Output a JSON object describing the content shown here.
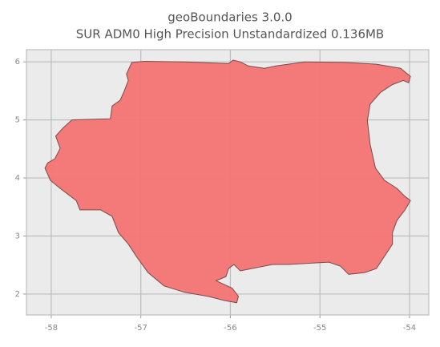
{
  "chart_data": {
    "type": "map",
    "title": "geoBoundaries 3.0.0",
    "subtitle": "SUR ADM0 High Precision Unstandardized 0.136MB",
    "color": "#f47474",
    "edge_color": "#7a4a4a",
    "background": "#ebebeb",
    "grid": true,
    "xlim": [
      -58.277,
      -53.785
    ],
    "ylim": [
      1.64,
      6.21
    ],
    "xticks": [
      -58,
      -57,
      -56,
      -55,
      -54
    ],
    "yticks": [
      2,
      3,
      4,
      5,
      6
    ],
    "x": [
      -57.1,
      -56.96,
      -56.51,
      -56.02,
      -55.97,
      -55.89,
      -55.8,
      -55.62,
      -55.49,
      -55.17,
      -54.72,
      -54.37,
      -54.1,
      -53.99,
      -54.01,
      -54.07,
      -54.19,
      -54.32,
      -54.44,
      -54.47,
      -54.44,
      -54.38,
      -54.28,
      -54.14,
      -54.05,
      -53.99,
      -54.05,
      -54.14,
      -54.19,
      -54.19,
      -54.28,
      -54.37,
      -54.5,
      -54.68,
      -54.77,
      -54.9,
      -55.35,
      -55.53,
      -55.89,
      -55.96,
      -56.02,
      -56.05,
      -56.16,
      -55.98,
      -55.91,
      -55.93,
      -56.07,
      -56.25,
      -56.51,
      -56.74,
      -56.92,
      -57.05,
      -57.14,
      -57.25,
      -57.32,
      -57.45,
      -57.68,
      -57.72,
      -57.9,
      -58.01,
      -58.07,
      -58.04,
      -57.96,
      -57.9,
      -57.95,
      -57.87,
      -57.77,
      -57.34,
      -57.32,
      -57.23,
      -57.19,
      -57.14,
      -57.16
    ],
    "values": [
      5.99,
      6.01,
      6.0,
      5.97,
      6.03,
      6.0,
      5.93,
      5.89,
      5.93,
      6.0,
      5.99,
      5.96,
      5.89,
      5.75,
      5.64,
      5.68,
      5.61,
      5.48,
      5.27,
      4.99,
      4.58,
      4.17,
      3.96,
      3.82,
      3.68,
      3.61,
      3.45,
      3.27,
      3.06,
      2.86,
      2.65,
      2.44,
      2.37,
      2.34,
      2.48,
      2.55,
      2.51,
      2.51,
      2.4,
      2.51,
      2.44,
      2.3,
      2.23,
      2.1,
      1.96,
      1.85,
      1.89,
      1.96,
      2.03,
      2.14,
      2.37,
      2.65,
      2.86,
      3.06,
      3.34,
      3.45,
      3.45,
      3.61,
      3.82,
      3.96,
      4.17,
      4.26,
      4.33,
      4.51,
      4.72,
      4.86,
      5.0,
      5.02,
      5.24,
      5.34,
      5.48,
      5.68,
      5.79
    ]
  }
}
